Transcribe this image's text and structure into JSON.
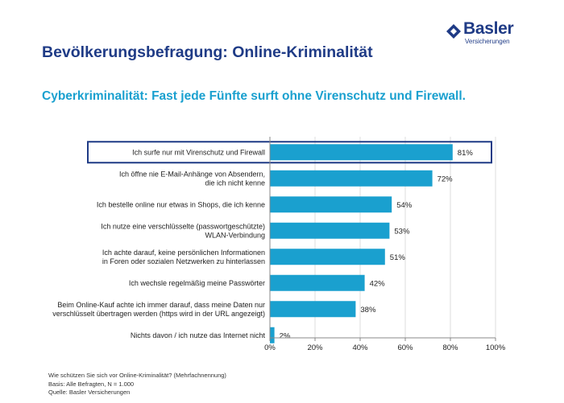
{
  "brand": {
    "name": "Basler",
    "sub": "Versicherungen",
    "color": "#1f3b86"
  },
  "header": {
    "title": "Bevölkerungsbefragung: Online-Kriminalität",
    "subtitle": "Cyberkriminalität: Fast jede Fünfte surft ohne Virenschutz und Firewall."
  },
  "chart_data": {
    "type": "bar",
    "orientation": "horizontal",
    "title": "Cyberkriminalität: Fast jede Fünfte surft ohne Virenschutz und Firewall.",
    "categories": [
      [
        "Ich surfe nur mit Virenschutz und Firewall"
      ],
      [
        "Ich öffne nie E-Mail-Anhänge von Absendern,",
        "die ich nicht kenne"
      ],
      [
        "Ich bestelle online nur etwas in Shops, die ich kenne"
      ],
      [
        "Ich nutze eine verschlüsselte (passwortgeschützte)",
        "WLAN-Verbindung"
      ],
      [
        "Ich achte darauf, keine persönlichen Informationen",
        "in Foren oder sozialen Netzwerken zu hinterlassen"
      ],
      [
        "Ich wechsle regelmäßig meine Passwörter"
      ],
      [
        "Beim Online-Kauf achte ich immer darauf, dass meine Daten nur",
        "verschlüsselt übertragen werden (https wird in der URL angezeigt)"
      ],
      [
        "Nichts davon / ich nutze das Internet nicht"
      ]
    ],
    "values": [
      81,
      72,
      54,
      53,
      51,
      42,
      38,
      2
    ],
    "value_labels": [
      "81%",
      "72%",
      "54%",
      "53%",
      "51%",
      "42%",
      "38%",
      "2%"
    ],
    "xlim": [
      0,
      100
    ],
    "xticks": [
      0,
      20,
      40,
      60,
      80,
      100
    ],
    "xtick_labels": [
      "0%",
      "20%",
      "40%",
      "60%",
      "80%",
      "100%"
    ],
    "highlighted_index": 0,
    "bar_color": "#1aa0cf",
    "highlight_color": "#1f3b86"
  },
  "footer": {
    "question": "Wie schützen Sie sich vor Online-Kriminalität? (Mehrfachnennung)",
    "basis": "Basis: Alle Befragten, N = 1.000",
    "source": "Quelle: Basler Versicherungen"
  }
}
